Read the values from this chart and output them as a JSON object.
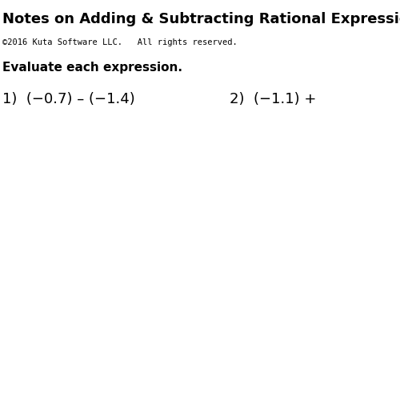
{
  "title": "Notes on Adding & Subtracting Rational Expressions",
  "copyright": "©2016 Kuta Software LLC.   All rights reserved.",
  "instruction": "Evaluate each expression.",
  "problem1": "1)  (−0.7) – (−1.4)",
  "problem2": "2)  (−1.1) +",
  "background": "#ffffff",
  "title_fontsize": 13,
  "copy_fontsize": 7.5,
  "instr_fontsize": 11,
  "prob_fontsize": 13
}
